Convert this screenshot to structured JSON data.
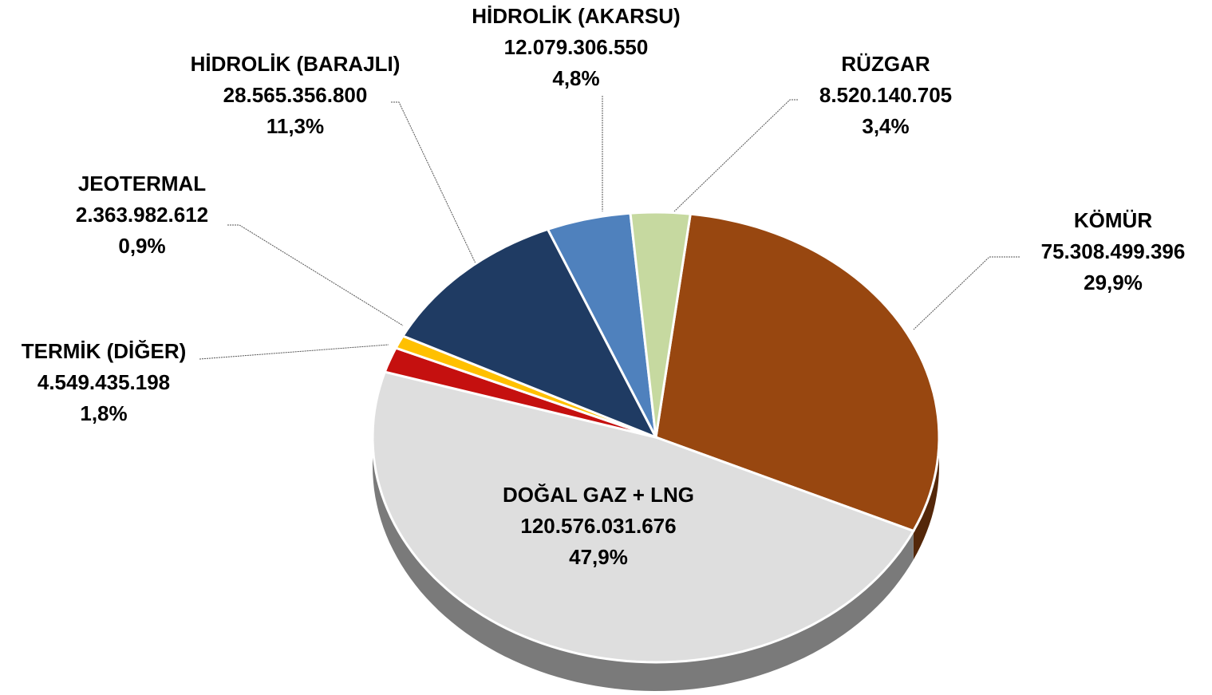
{
  "chart_data": {
    "type": "pie",
    "categories": [
      "KÖMÜR",
      "DOĞAL GAZ + LNG",
      "TERMİK (DİĞER)",
      "JEOTERMAL",
      "HİDROLİK (BARAJLI)",
      "HİDROLİK (AKARSU)",
      "RÜZGAR"
    ],
    "values": [
      75308499396,
      120576031676,
      4549435198,
      2363982612,
      28565356800,
      12079306550,
      8520140705
    ],
    "value_labels": [
      "75.308.499.396",
      "120.576.031.676",
      "4.549.435.198",
      "2.363.982.612",
      "28.565.356.800",
      "12.079.306.550",
      "8.520.140.705"
    ],
    "percents": [
      29.9,
      47.9,
      1.8,
      0.9,
      11.3,
      4.8,
      3.4
    ],
    "percent_labels": [
      "29,9%",
      "47,9%",
      "1,8%",
      "0,9%",
      "11,3%",
      "4,8%",
      "3,4%"
    ],
    "colors": [
      "#984710",
      "#dedede",
      "#c5100f",
      "#ffc000",
      "#1f3b63",
      "#4f81bd",
      "#c6d9a0"
    ]
  }
}
